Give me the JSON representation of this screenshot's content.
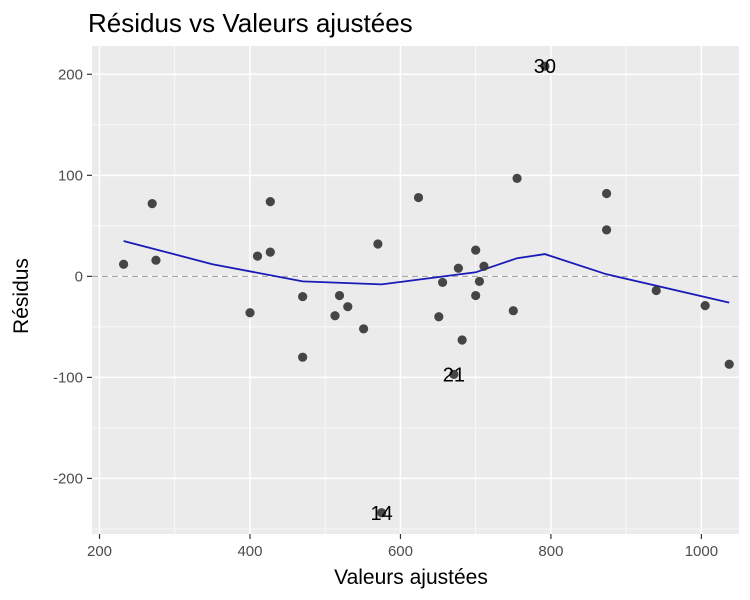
{
  "chart_data": {
    "type": "scatter",
    "title": "Résidus vs Valeurs ajustées",
    "xlabel": "Valeurs ajustées",
    "ylabel": "Résidus",
    "xlim": [
      190,
      1050
    ],
    "ylim": [
      -255,
      228
    ],
    "x_ticks": [
      200,
      400,
      600,
      800,
      1000
    ],
    "x_tick_labels": [
      "200",
      "400",
      "600",
      "800",
      "1000"
    ],
    "y_ticks": [
      -200,
      -100,
      0,
      100,
      200
    ],
    "y_tick_labels": [
      "-200",
      "-100",
      "0",
      "100",
      "200"
    ],
    "grid": true,
    "legend": "none",
    "reference_line": {
      "y": 0,
      "style": "dashed"
    },
    "colors": {
      "panel": "#ebebeb",
      "grid_major": "#ffffff",
      "points": "#333333",
      "smooth_line": "#1a1ab8",
      "reference_line": "#9a9a9a"
    },
    "points": [
      {
        "x": 232,
        "y": 12
      },
      {
        "x": 270,
        "y": 72
      },
      {
        "x": 275,
        "y": 16
      },
      {
        "x": 400,
        "y": -36
      },
      {
        "x": 410,
        "y": 20
      },
      {
        "x": 427,
        "y": 74
      },
      {
        "x": 427,
        "y": 24
      },
      {
        "x": 470,
        "y": -20
      },
      {
        "x": 470,
        "y": -80
      },
      {
        "x": 513,
        "y": -39
      },
      {
        "x": 519,
        "y": -19
      },
      {
        "x": 530,
        "y": -30
      },
      {
        "x": 551,
        "y": -52
      },
      {
        "x": 570,
        "y": 32
      },
      {
        "x": 575,
        "y": -234
      },
      {
        "x": 624,
        "y": 78
      },
      {
        "x": 651,
        "y": -40
      },
      {
        "x": 656,
        "y": -6
      },
      {
        "x": 671,
        "y": -97
      },
      {
        "x": 677,
        "y": 8
      },
      {
        "x": 682,
        "y": -63
      },
      {
        "x": 700,
        "y": -19
      },
      {
        "x": 700,
        "y": 26
      },
      {
        "x": 705,
        "y": -5
      },
      {
        "x": 711,
        "y": 10
      },
      {
        "x": 750,
        "y": -34
      },
      {
        "x": 755,
        "y": 97
      },
      {
        "x": 792,
        "y": 208
      },
      {
        "x": 874,
        "y": 82
      },
      {
        "x": 874,
        "y": 46
      },
      {
        "x": 940,
        "y": -14
      },
      {
        "x": 1005,
        "y": -29
      },
      {
        "x": 1037,
        "y": -87
      }
    ],
    "point_labels": [
      {
        "text": "30",
        "x": 792,
        "y": 208
      },
      {
        "text": "21",
        "x": 671,
        "y": -97
      },
      {
        "text": "14",
        "x": 575,
        "y": -234
      }
    ],
    "smooth_line": [
      {
        "x": 232,
        "y": 35
      },
      {
        "x": 350,
        "y": 12
      },
      {
        "x": 470,
        "y": -5
      },
      {
        "x": 575,
        "y": -8
      },
      {
        "x": 700,
        "y": 4
      },
      {
        "x": 755,
        "y": 18
      },
      {
        "x": 792,
        "y": 22
      },
      {
        "x": 874,
        "y": 2
      },
      {
        "x": 1037,
        "y": -26
      }
    ]
  }
}
